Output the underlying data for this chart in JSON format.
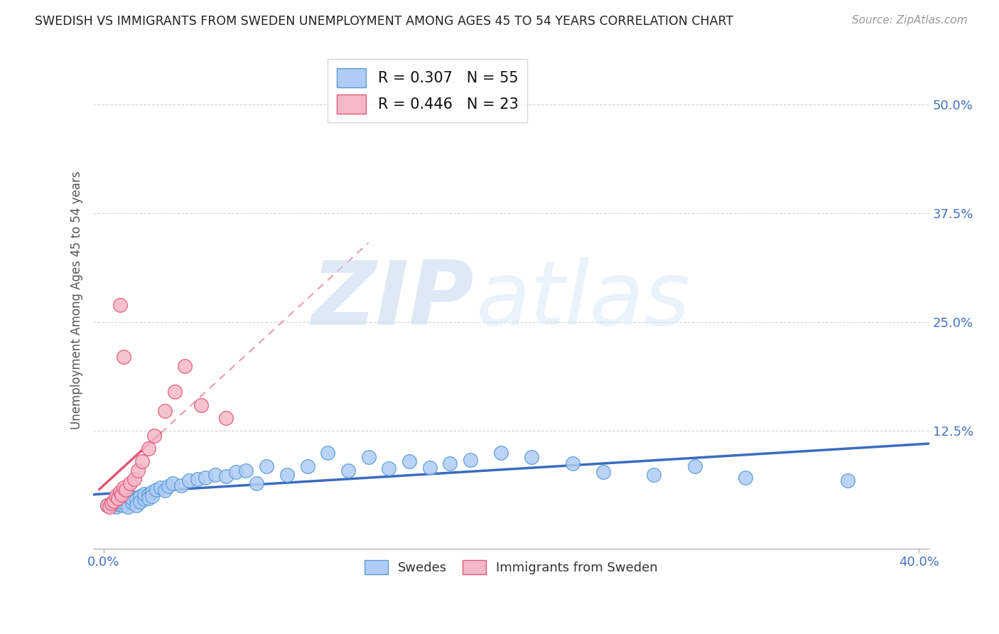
{
  "title": "SWEDISH VS IMMIGRANTS FROM SWEDEN UNEMPLOYMENT AMONG AGES 45 TO 54 YEARS CORRELATION CHART",
  "source": "Source: ZipAtlas.com",
  "ylabel": "Unemployment Among Ages 45 to 54 years",
  "xlim": [
    -0.005,
    0.405
  ],
  "ylim": [
    -0.01,
    0.56
  ],
  "ytick_vals": [
    0.125,
    0.25,
    0.375,
    0.5
  ],
  "ytick_labels": [
    "12.5%",
    "25.0%",
    "37.5%",
    "50.0%"
  ],
  "xtick_vals": [
    0.0,
    0.4
  ],
  "xtick_labels": [
    "0.0%",
    "40.0%"
  ],
  "swedes_R": 0.307,
  "swedes_N": 55,
  "immigrants_R": 0.446,
  "immigrants_N": 23,
  "swedes_dot_color": "#aeccf5",
  "swedes_edge_color": "#5b9bd5",
  "immigrants_dot_color": "#f5b8c8",
  "immigrants_edge_color": "#e05878",
  "swedes_line_color": "#3a6cbf",
  "immigrants_line_color": "#e05878",
  "background_color": "#ffffff",
  "swedes_x": [
    0.002,
    0.004,
    0.006,
    0.006,
    0.008,
    0.008,
    0.01,
    0.01,
    0.012,
    0.012,
    0.014,
    0.014,
    0.016,
    0.016,
    0.018,
    0.018,
    0.02,
    0.02,
    0.022,
    0.022,
    0.024,
    0.024,
    0.026,
    0.028,
    0.03,
    0.032,
    0.034,
    0.038,
    0.042,
    0.046,
    0.05,
    0.055,
    0.06,
    0.065,
    0.07,
    0.075,
    0.08,
    0.09,
    0.1,
    0.11,
    0.12,
    0.13,
    0.14,
    0.15,
    0.16,
    0.17,
    0.18,
    0.195,
    0.21,
    0.23,
    0.245,
    0.27,
    0.29,
    0.315,
    0.365
  ],
  "swedes_y": [
    0.04,
    0.042,
    0.038,
    0.044,
    0.041,
    0.046,
    0.04,
    0.043,
    0.045,
    0.038,
    0.043,
    0.048,
    0.046,
    0.04,
    0.05,
    0.044,
    0.047,
    0.053,
    0.052,
    0.048,
    0.055,
    0.05,
    0.058,
    0.06,
    0.057,
    0.062,
    0.065,
    0.063,
    0.068,
    0.07,
    0.072,
    0.075,
    0.073,
    0.078,
    0.08,
    0.065,
    0.085,
    0.075,
    0.085,
    0.1,
    0.08,
    0.095,
    0.082,
    0.09,
    0.083,
    0.088,
    0.092,
    0.1,
    0.095,
    0.088,
    0.078,
    0.075,
    0.085,
    0.072,
    0.068
  ],
  "immigrants_x": [
    0.002,
    0.003,
    0.004,
    0.005,
    0.006,
    0.007,
    0.008,
    0.009,
    0.01,
    0.011,
    0.013,
    0.015,
    0.017,
    0.019,
    0.022,
    0.025,
    0.03,
    0.035,
    0.04,
    0.048,
    0.06,
    0.008,
    0.01
  ],
  "immigrants_y": [
    0.04,
    0.038,
    0.042,
    0.045,
    0.05,
    0.048,
    0.055,
    0.052,
    0.06,
    0.058,
    0.065,
    0.07,
    0.08,
    0.09,
    0.105,
    0.12,
    0.148,
    0.17,
    0.2,
    0.155,
    0.14,
    0.27,
    0.21
  ]
}
